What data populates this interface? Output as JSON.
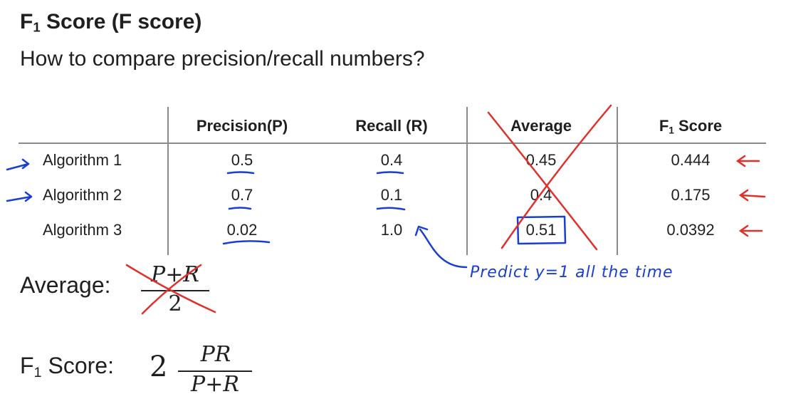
{
  "slide": {
    "title_main": "F",
    "title_sub": "1",
    "title_rest": " Score (F score)",
    "subtitle": "How to compare precision/recall numbers?"
  },
  "table": {
    "headers": {
      "precision": "Precision(P)",
      "recall": "Recall (R)",
      "average": "Average",
      "f1_main": "F",
      "f1_sub": "1",
      "f1_rest": " Score"
    },
    "rows": [
      {
        "name": "Algorithm 1",
        "precision": "0.5",
        "recall": "0.4",
        "average": "0.45",
        "f1": "0.444"
      },
      {
        "name": "Algorithm 2",
        "precision": "0.7",
        "recall": "0.1",
        "average": "0.4",
        "f1": "0.175"
      },
      {
        "name": "Algorithm 3",
        "precision": "0.02",
        "recall": "1.0",
        "average": "0.51",
        "f1": "0.0392"
      }
    ]
  },
  "formulas": {
    "average_label": "Average:",
    "average_numerator": "P+R",
    "average_denominator": "2",
    "f1_label_main": "F",
    "f1_label_sub": "1",
    "f1_label_rest": " Score:",
    "f1_coefficient": "2",
    "f1_numerator": "PR",
    "f1_denominator": "P+R"
  },
  "annotation": {
    "note": "Predict y=1 all the time"
  },
  "colors": {
    "ink_blue": "#1a3fd0",
    "ink_red": "#e0302a",
    "grid": "#8a8a8a"
  }
}
